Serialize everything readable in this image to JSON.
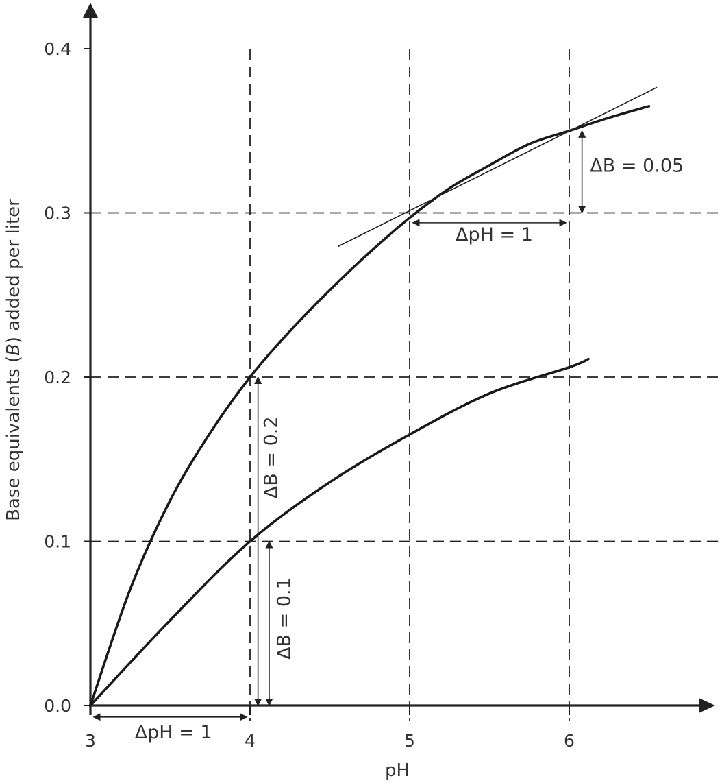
{
  "chart_data": {
    "type": "line",
    "xlabel": "pH",
    "ylabel_parts": [
      "Base equivalents (",
      "B",
      ") added per liter"
    ],
    "xlim": [
      3,
      7
    ],
    "ylim": [
      0,
      0.4
    ],
    "x_ticks": [
      {
        "value": 3,
        "label": "3"
      },
      {
        "value": 4,
        "label": "4"
      },
      {
        "value": 5,
        "label": "5"
      },
      {
        "value": 6,
        "label": "6"
      }
    ],
    "y_ticks": [
      {
        "value": 0.0,
        "label": "0.0"
      },
      {
        "value": 0.1,
        "label": "0.1"
      },
      {
        "value": 0.2,
        "label": "0.2"
      },
      {
        "value": 0.3,
        "label": "0.3"
      },
      {
        "value": 0.4,
        "label": "0.4"
      }
    ],
    "grid": {
      "x": [
        4,
        5,
        6
      ],
      "y": [
        0.1,
        0.2,
        0.3
      ],
      "style": "dashed"
    },
    "series": [
      {
        "key": "upper",
        "x": [
          3,
          3.25,
          3.5,
          3.75,
          4,
          4.25,
          4.5,
          4.75,
          5,
          5.25,
          5.5,
          5.75,
          6,
          6.25,
          6.5
        ],
        "y": [
          0,
          0.071,
          0.125,
          0.166,
          0.2,
          0.228,
          0.253,
          0.276,
          0.297,
          0.315,
          0.329,
          0.342,
          0.35,
          0.358,
          0.365
        ]
      },
      {
        "key": "lower",
        "x": [
          3,
          3.5,
          4,
          4.5,
          5,
          5.5,
          6,
          6.12
        ],
        "y": [
          0,
          0.052,
          0.1,
          0.136,
          0.165,
          0.19,
          0.206,
          0.211
        ]
      }
    ],
    "tangent": {
      "x": [
        4.55,
        6.55
      ],
      "y": [
        0.2795,
        0.3765
      ]
    },
    "annotations": [
      {
        "label": "ΔB = 0.05",
        "x1": 6.08,
        "y1": 0.35,
        "x2": 6.08,
        "y2": 0.3,
        "text_x": 6.13,
        "text_y": 0.325,
        "rotate": false
      },
      {
        "label": "ΔpH = 1",
        "x1": 5.02,
        "y1": 0.294,
        "x2": 5.98,
        "y2": 0.294,
        "text_x": 5.53,
        "text_y": 0.283,
        "rotate": false
      },
      {
        "label": "ΔB = 0.2",
        "x1": 4.05,
        "y1": 0.0,
        "x2": 4.05,
        "y2": 0.2,
        "text_x": 4.17,
        "text_y": 0.151,
        "rotate": true
      },
      {
        "label": "ΔB = 0.1",
        "x1": 4.12,
        "y1": 0.0,
        "x2": 4.12,
        "y2": 0.1,
        "text_x": 4.25,
        "text_y": 0.053,
        "rotate": true
      },
      {
        "label": "ΔpH = 1",
        "x1": 3.02,
        "y1": -0.007,
        "x2": 3.98,
        "y2": -0.007,
        "text_x": 3.52,
        "text_y": -0.02,
        "rotate": false
      }
    ]
  }
}
